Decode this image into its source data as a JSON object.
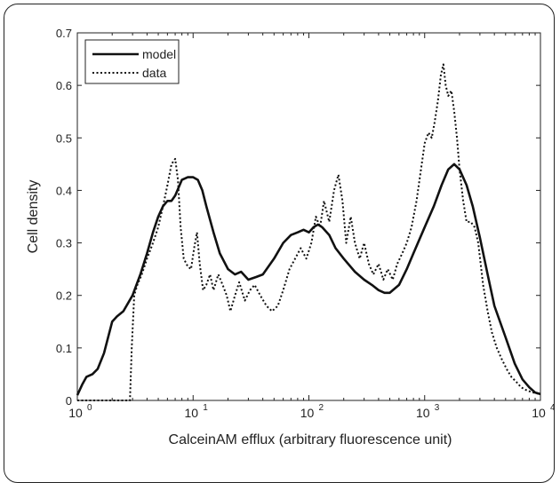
{
  "chart_data": {
    "type": "line",
    "xlabel": "CalceinAM efflux (arbitrary fluorescence unit)",
    "ylabel": "Cell density",
    "xscale": "log",
    "xlim": [
      1,
      10000
    ],
    "ylim": [
      0,
      0.7
    ],
    "x_ticks": [
      {
        "value": 1,
        "base": "10",
        "exp": "0"
      },
      {
        "value": 10,
        "base": "10",
        "exp": "1"
      },
      {
        "value": 100,
        "base": "10",
        "exp": "2"
      },
      {
        "value": 1000,
        "base": "10",
        "exp": "3"
      },
      {
        "value": 10000,
        "base": "10",
        "exp": "4"
      }
    ],
    "y_ticks": [
      "0",
      "0.1",
      "0.2",
      "0.3",
      "0.4",
      "0.5",
      "0.6",
      "0.7"
    ],
    "grid": false,
    "legend_position": "top-left",
    "series": [
      {
        "name": "model",
        "style": "solid",
        "color": "#111111",
        "x": [
          1,
          1.1,
          1.2,
          1.35,
          1.5,
          1.7,
          2.0,
          2.2,
          2.5,
          3.0,
          3.5,
          4.0,
          4.5,
          5.0,
          5.5,
          6.0,
          6.5,
          7.0,
          8.0,
          9.0,
          10,
          11,
          12,
          13,
          15,
          17,
          20,
          23,
          26,
          30,
          35,
          40,
          50,
          60,
          70,
          80,
          90,
          100,
          110,
          120,
          130,
          150,
          170,
          200,
          250,
          300,
          350,
          400,
          450,
          500,
          600,
          700,
          800,
          1000,
          1200,
          1400,
          1600,
          1800,
          2000,
          2300,
          2600,
          3000,
          3500,
          4000,
          5000,
          6000,
          7000,
          8000,
          9000,
          10000
        ],
        "y": [
          0.01,
          0.03,
          0.045,
          0.05,
          0.06,
          0.09,
          0.15,
          0.16,
          0.17,
          0.2,
          0.24,
          0.28,
          0.32,
          0.35,
          0.37,
          0.38,
          0.38,
          0.39,
          0.42,
          0.425,
          0.425,
          0.42,
          0.4,
          0.37,
          0.32,
          0.28,
          0.25,
          0.24,
          0.245,
          0.23,
          0.235,
          0.24,
          0.27,
          0.3,
          0.315,
          0.32,
          0.325,
          0.32,
          0.33,
          0.335,
          0.33,
          0.315,
          0.29,
          0.27,
          0.245,
          0.23,
          0.22,
          0.21,
          0.205,
          0.205,
          0.22,
          0.25,
          0.28,
          0.33,
          0.37,
          0.41,
          0.44,
          0.45,
          0.44,
          0.41,
          0.37,
          0.31,
          0.24,
          0.18,
          0.12,
          0.07,
          0.04,
          0.025,
          0.015,
          0.012
        ]
      },
      {
        "name": "data",
        "style": "dotted",
        "color": "#111111",
        "x": [
          1,
          1.5,
          2.0,
          2.5,
          2.85,
          2.95,
          3.1,
          3.3,
          3.6,
          4.0,
          4.5,
          5.0,
          5.5,
          6.0,
          6.5,
          7.0,
          7.4,
          7.8,
          8.3,
          9.0,
          9.6,
          10.2,
          10.8,
          11.4,
          12.2,
          13.0,
          14.0,
          15.0,
          16.5,
          18.0,
          19.5,
          21.0,
          23.0,
          25.0,
          28.0,
          31.0,
          34.0,
          38.0,
          43.0,
          48.0,
          54.0,
          60.0,
          68.0,
          76.0,
          85.0,
          95.0,
          105,
          115,
          125,
          135,
          150,
          165,
          180,
          195,
          210,
          230,
          250,
          275,
          300,
          330,
          360,
          400,
          440,
          480,
          530,
          580,
          640,
          700,
          770,
          850,
          930,
          1000,
          1080,
          1150,
          1220,
          1300,
          1380,
          1450,
          1520,
          1600,
          1700,
          1800,
          1900,
          2000,
          2150,
          2300,
          2500,
          2700,
          2900,
          3200,
          3500,
          3800,
          4200,
          4600,
          5100,
          5600,
          6200,
          6800,
          7500,
          8300,
          9000,
          10000
        ],
        "y": [
          0,
          0,
          0,
          0,
          0,
          0.1,
          0.2,
          0.22,
          0.24,
          0.27,
          0.3,
          0.33,
          0.37,
          0.41,
          0.45,
          0.46,
          0.42,
          0.33,
          0.27,
          0.255,
          0.25,
          0.29,
          0.32,
          0.26,
          0.21,
          0.22,
          0.24,
          0.21,
          0.24,
          0.22,
          0.2,
          0.17,
          0.2,
          0.225,
          0.19,
          0.21,
          0.22,
          0.2,
          0.18,
          0.17,
          0.18,
          0.21,
          0.25,
          0.27,
          0.29,
          0.27,
          0.3,
          0.35,
          0.33,
          0.38,
          0.34,
          0.4,
          0.43,
          0.38,
          0.3,
          0.35,
          0.3,
          0.27,
          0.3,
          0.26,
          0.24,
          0.26,
          0.23,
          0.25,
          0.23,
          0.26,
          0.28,
          0.3,
          0.33,
          0.38,
          0.44,
          0.49,
          0.51,
          0.5,
          0.53,
          0.57,
          0.62,
          0.64,
          0.6,
          0.58,
          0.59,
          0.55,
          0.5,
          0.44,
          0.38,
          0.34,
          0.34,
          0.33,
          0.3,
          0.22,
          0.17,
          0.13,
          0.1,
          0.08,
          0.06,
          0.045,
          0.035,
          0.025,
          0.02,
          0.016,
          0.014,
          0.012
        ]
      }
    ]
  }
}
